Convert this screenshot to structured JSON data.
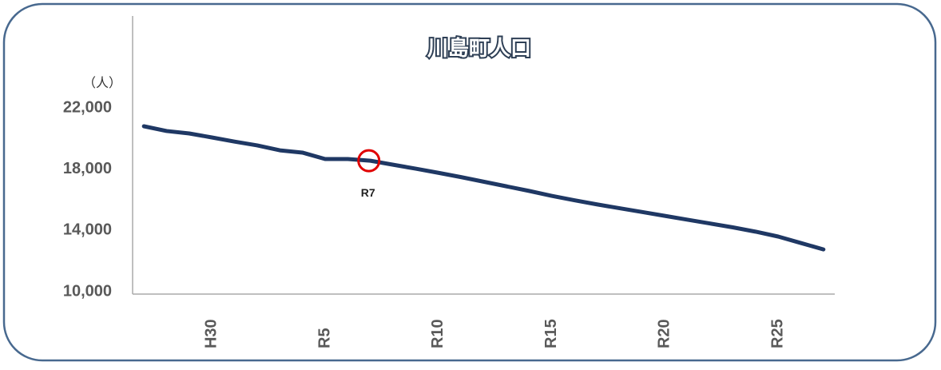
{
  "chart_data": {
    "type": "line",
    "title": "川島町人口",
    "y_unit": "（人）",
    "categories": [
      null,
      null,
      null,
      "H30",
      null,
      null,
      null,
      null,
      "R5",
      null,
      null,
      null,
      null,
      "R10",
      null,
      null,
      null,
      null,
      "R15",
      null,
      null,
      null,
      null,
      "R20",
      null,
      null,
      null,
      null,
      "R25",
      null,
      null
    ],
    "series": [
      {
        "name": "人口",
        "color": "#1f3864",
        "values": [
          20800,
          20490,
          20330,
          20070,
          19800,
          19550,
          19230,
          19080,
          18660,
          18660,
          18550,
          18290,
          18030,
          17760,
          17480,
          17180,
          16880,
          16580,
          16260,
          15970,
          15700,
          15450,
          15200,
          14950,
          14700,
          14450,
          14200,
          13920,
          13600,
          13180,
          12760
        ]
      }
    ],
    "annotation": {
      "text": "R7",
      "at": 10,
      "color": "#e00000"
    },
    "ylim": [
      10000,
      28000
    ],
    "yticks": [
      {
        "value": 10000,
        "label": "10,000"
      },
      {
        "value": 14000,
        "label": "14,000"
      },
      {
        "value": 18000,
        "label": "18,000"
      },
      {
        "value": 22000,
        "label": "22,000"
      }
    ],
    "grid": false
  }
}
